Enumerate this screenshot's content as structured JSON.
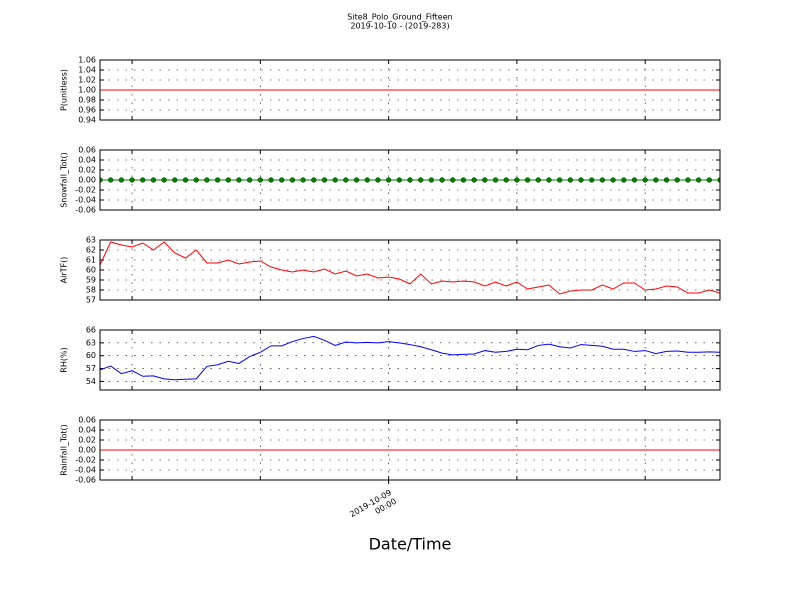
{
  "figure": {
    "title": "Site8_Polo_Ground_Fifteen",
    "subtitle": "2019-10-10 - (2019-283)",
    "xlabel": "Date/Time",
    "x": [
      -27,
      -26,
      -25,
      -24,
      -23,
      -22,
      -21,
      -20,
      -19,
      -18,
      -17,
      -16,
      -15,
      -14,
      -13,
      -12,
      -11,
      -10,
      -9,
      -8,
      -7,
      -6,
      -5,
      -4,
      -3,
      -2,
      -1,
      0,
      1,
      2,
      3,
      4,
      5,
      6,
      7,
      8,
      9,
      10,
      11,
      12,
      13,
      14,
      15,
      16,
      17,
      18,
      19,
      20,
      21,
      22,
      23,
      24,
      25,
      26,
      27,
      28,
      29,
      30,
      31
    ],
    "xlim": [
      -27,
      31
    ],
    "xticks": [
      {
        "value": 0,
        "label": "2019-10-09\n00:00"
      }
    ],
    "xgrid": [
      -24,
      -12,
      0,
      12,
      24
    ]
  },
  "chart_data": [
    {
      "type": "line",
      "ylabel": "P(unitless)",
      "ylim": [
        0.94,
        1.06
      ],
      "grid": true,
      "yticks": [
        0.94,
        0.96,
        0.98,
        {
          "value": 1,
          "label": "1.00"
        },
        1.02,
        1.04,
        1.06
      ],
      "series": [
        {
          "color": "#ff0000",
          "values": [
            1,
            1,
            1,
            1,
            1,
            1,
            1,
            1,
            1,
            1,
            1,
            1,
            1,
            1,
            1,
            1,
            1,
            1,
            1,
            1,
            1,
            1,
            1,
            1,
            1,
            1,
            1,
            1,
            1,
            1,
            1,
            1,
            1,
            1,
            1,
            1,
            1,
            1,
            1,
            1,
            1,
            1,
            1,
            1,
            1,
            1,
            1,
            1,
            1,
            1,
            1,
            1,
            1,
            1,
            1,
            1,
            1,
            1,
            1
          ]
        }
      ]
    },
    {
      "type": "line",
      "ylabel": "Snowfall_Tot()",
      "ylim": [
        -0.06,
        0.06
      ],
      "grid": true,
      "yticks": [
        -0.06,
        -0.04,
        -0.02,
        {
          "value": 0,
          "label": "0.00"
        },
        0.02,
        0.04,
        0.06
      ],
      "series": [
        {
          "color": "#008000",
          "marker": "circle",
          "values": [
            0,
            0,
            0,
            0,
            0,
            0,
            0,
            0,
            0,
            0,
            0,
            0,
            0,
            0,
            0,
            0,
            0,
            0,
            0,
            0,
            0,
            0,
            0,
            0,
            0,
            0,
            0,
            0,
            0,
            0,
            0,
            0,
            0,
            0,
            0,
            0,
            0,
            0,
            0,
            0,
            0,
            0,
            0,
            0,
            0,
            0,
            0,
            0,
            0,
            0,
            0,
            0,
            0,
            0,
            0,
            0,
            0,
            0,
            0
          ]
        }
      ]
    },
    {
      "type": "line",
      "ylabel": "AirTF()",
      "ylim": [
        57,
        63
      ],
      "grid": true,
      "yticks": [
        57,
        58,
        59,
        60,
        61,
        62,
        63
      ],
      "series": [
        {
          "color": "#ff0000",
          "values": [
            60.5,
            62.8,
            62.5,
            62.3,
            62.7,
            62.0,
            62.8,
            61.7,
            61.2,
            62.0,
            60.7,
            60.7,
            61.0,
            60.6,
            60.8,
            60.9,
            60.3,
            60.0,
            59.8,
            60.0,
            59.8,
            60.1,
            59.6,
            59.9,
            59.4,
            59.6,
            59.2,
            59.3,
            59.1,
            58.6,
            59.6,
            58.6,
            58.9,
            58.8,
            58.9,
            58.8,
            58.4,
            58.8,
            58.4,
            58.8,
            58.1,
            58.3,
            58.5,
            57.6,
            57.9,
            58.0,
            58.0,
            58.5,
            58.1,
            58.7,
            58.7,
            58.0,
            58.1,
            58.4,
            58.3,
            57.7,
            57.7,
            58.0,
            57.7
          ]
        }
      ]
    },
    {
      "type": "line",
      "ylabel": "RH(%)",
      "ylim": [
        52,
        66
      ],
      "grid": true,
      "yticks": [
        54,
        57,
        60,
        63,
        66
      ],
      "series": [
        {
          "color": "#0000ff",
          "values": [
            56.7,
            57.6,
            55.8,
            56.5,
            55.2,
            55.3,
            54.6,
            54.4,
            54.5,
            54.6,
            57.5,
            57.9,
            58.7,
            58.2,
            59.8,
            60.8,
            62.3,
            62.3,
            63.3,
            64.0,
            64.5,
            63.6,
            62.4,
            63.2,
            63.0,
            63.1,
            63.0,
            63.3,
            63.0,
            62.6,
            62.1,
            61.4,
            60.6,
            60.2,
            60.3,
            60.4,
            61.2,
            60.8,
            61.0,
            61.5,
            61.4,
            62.4,
            62.7,
            62.1,
            61.8,
            62.6,
            62.4,
            62.2,
            61.5,
            61.5,
            61.0,
            61.2,
            60.5,
            61.0,
            61.1,
            60.8,
            60.8,
            60.9,
            60.8
          ]
        }
      ]
    },
    {
      "type": "line",
      "ylabel": "Rainfall_Tot()",
      "ylim": [
        -0.06,
        0.06
      ],
      "grid": true,
      "yticks": [
        -0.06,
        -0.04,
        -0.02,
        {
          "value": 0,
          "label": "0.00"
        },
        0.02,
        0.04,
        0.06
      ],
      "series": [
        {
          "color": "#ff0000",
          "values": [
            0,
            0,
            0,
            0,
            0,
            0,
            0,
            0,
            0,
            0,
            0,
            0,
            0,
            0,
            0,
            0,
            0,
            0,
            0,
            0,
            0,
            0,
            0,
            0,
            0,
            0,
            0,
            0,
            0,
            0,
            0,
            0,
            0,
            0,
            0,
            0,
            0,
            0,
            0,
            0,
            0,
            0,
            0,
            0,
            0,
            0,
            0,
            0,
            0,
            0,
            0,
            0,
            0,
            0,
            0,
            0,
            0,
            0,
            0
          ]
        }
      ]
    }
  ]
}
